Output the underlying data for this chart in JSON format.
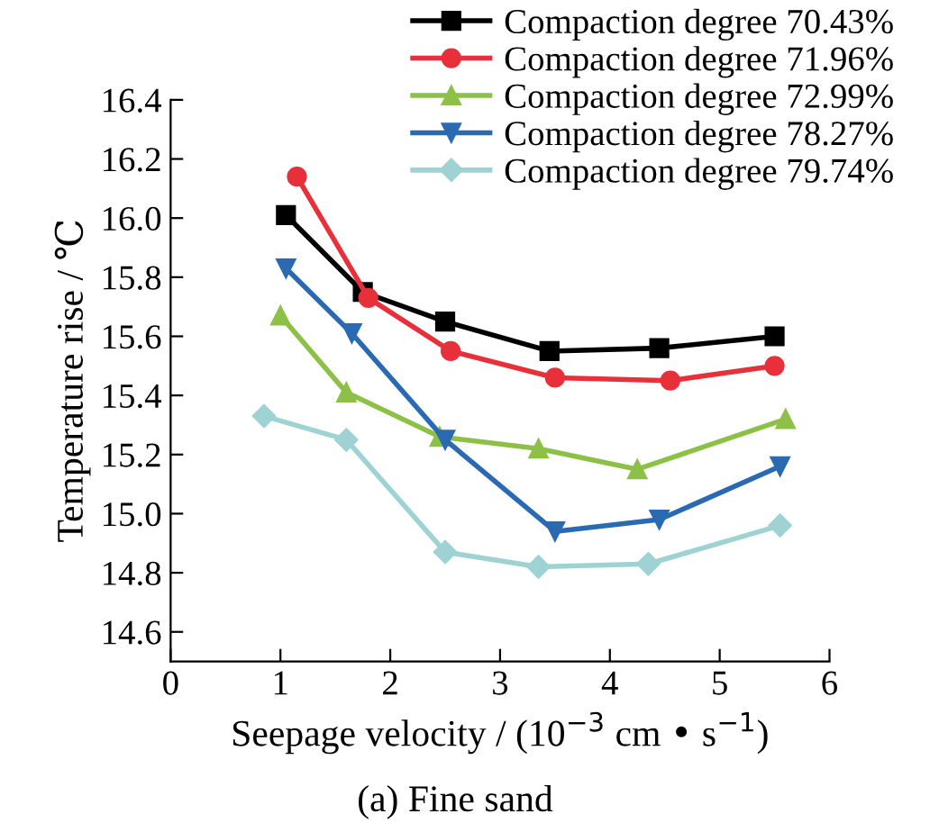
{
  "chart_data": {
    "type": "line",
    "xlabel": "Seepage velocity / (10$^{−3}$ cm • s$^{−1}$)",
    "ylabel": "Temperature rise / ℃",
    "annotations": [
      "(a) Fine sand"
    ],
    "xlim": [
      0,
      6
    ],
    "xticks": [
      0,
      1,
      2,
      3,
      4,
      5,
      6
    ],
    "ylim": [
      14.5,
      16.4
    ],
    "yticks": [
      14.6,
      14.8,
      {
        "value": 15,
        "label": "15.0"
      },
      15.2,
      15.4,
      15.6,
      15.8,
      {
        "value": 16,
        "label": "16.0"
      },
      16.2,
      16.4
    ],
    "grid": false,
    "legend": "top right",
    "line_style": "solid",
    "series": [
      {
        "name": "Compaction degree 70.43%",
        "color": "#000000",
        "marker": "square",
        "x": [
          1.05,
          1.75,
          2.5,
          3.45,
          4.45,
          5.5
        ],
        "values": [
          16.01,
          15.75,
          15.65,
          15.55,
          15.56,
          15.6
        ]
      },
      {
        "name": "Compaction degree 71.96%",
        "color": "#e8303a",
        "marker": "circle",
        "x": [
          1.15,
          1.8,
          2.55,
          3.5,
          4.55,
          5.5
        ],
        "values": [
          16.14,
          15.73,
          15.55,
          15.46,
          15.45,
          15.5
        ]
      },
      {
        "name": "Compaction degree 72.99%",
        "color": "#8dc046",
        "marker": "triangle",
        "x": [
          1.0,
          1.6,
          2.45,
          3.35,
          4.25,
          5.6
        ],
        "values": [
          15.67,
          15.41,
          15.26,
          15.22,
          15.15,
          15.32
        ]
      },
      {
        "name": "Compaction degree 78.27%",
        "color": "#2a6ab3",
        "marker": "triangle_down",
        "x": [
          1.05,
          1.65,
          2.5,
          3.5,
          4.45,
          5.55
        ],
        "values": [
          15.83,
          15.61,
          15.25,
          14.94,
          14.98,
          15.16
        ]
      },
      {
        "name": "Compaction degree 79.74%",
        "color": "#9fd3d3",
        "marker": "diamond",
        "x": [
          0.85,
          1.6,
          2.5,
          3.35,
          4.35,
          5.55
        ],
        "values": [
          15.33,
          15.25,
          14.87,
          14.82,
          14.83,
          14.96
        ]
      }
    ]
  }
}
